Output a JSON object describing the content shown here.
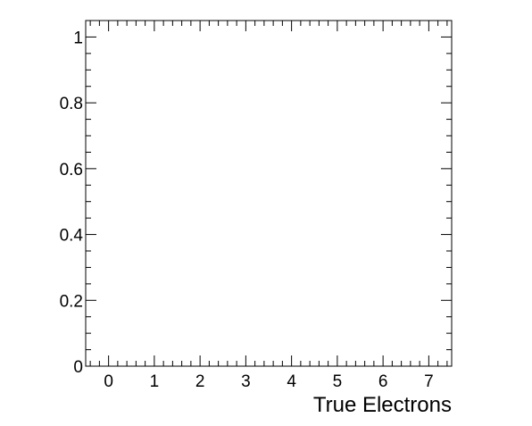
{
  "chart_data": {
    "type": "bar",
    "title": "",
    "xlabel": "True Electrons",
    "ylabel": "",
    "xlim": [
      -0.5,
      7.5
    ],
    "ylim": [
      0,
      1.05
    ],
    "x_major_ticks": [
      0,
      1,
      2,
      3,
      4,
      5,
      6,
      7
    ],
    "x_tick_labels": [
      "0",
      "1",
      "2",
      "3",
      "4",
      "5",
      "6",
      "7"
    ],
    "x_minor_step": 0.2,
    "y_major_ticks": [
      0,
      0.2,
      0.4,
      0.6,
      0.8,
      1
    ],
    "y_tick_labels": [
      "0",
      "0.2",
      "0.4",
      "0.6",
      "0.8",
      "1"
    ],
    "y_minor_step": 0.05,
    "grid": false,
    "series": []
  }
}
